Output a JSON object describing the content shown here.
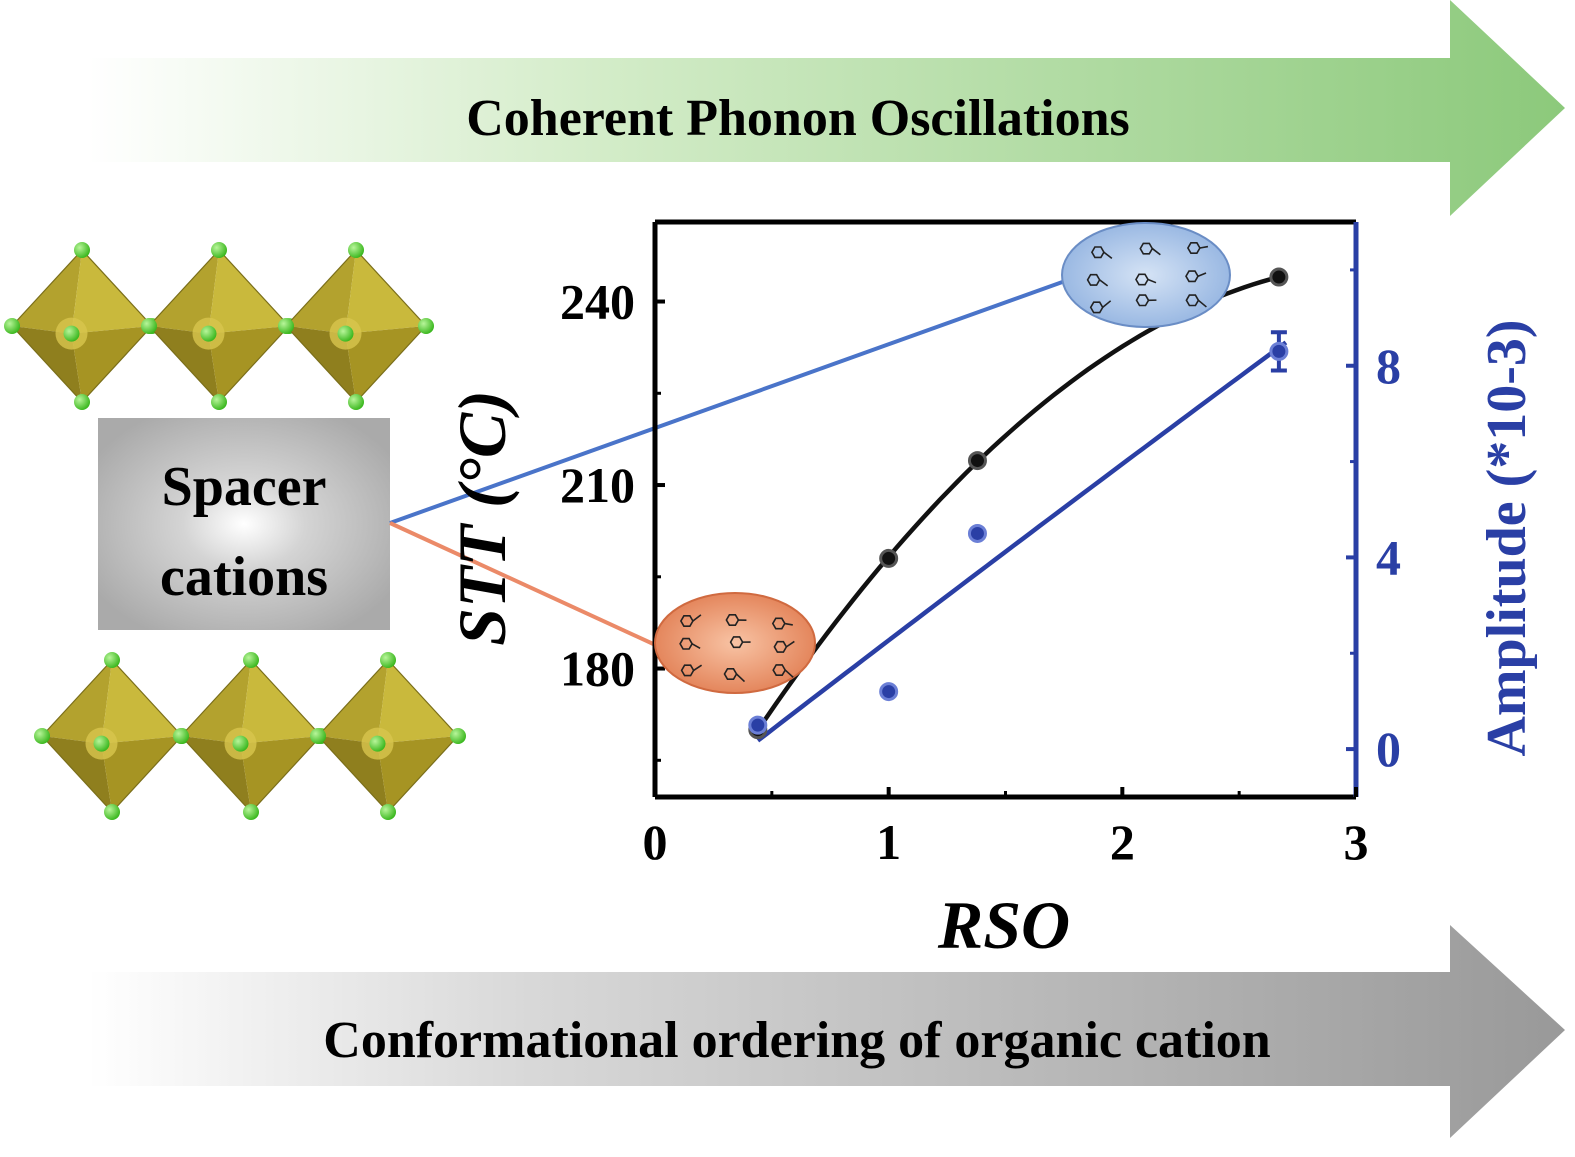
{
  "top_banner": {
    "text": "Coherent Phonon Oscillations",
    "color": "#8cc97b"
  },
  "bottom_banner": {
    "text": "Conformational ordering of organic cation",
    "color": "#9a9a9a"
  },
  "spacer_box": {
    "line1": "Spacer",
    "line2": "cations"
  },
  "chart_data": {
    "type": "scatter",
    "xlabel": "RSO",
    "ylabel_left": "STT (°C)",
    "ylabel_right": "Amplitude (*10-3)",
    "xlim": [
      0,
      3
    ],
    "ylim_left": [
      159,
      253
    ],
    "ylim_right": [
      -1,
      11
    ],
    "x_ticks": [
      "0",
      "1",
      "2",
      "3"
    ],
    "left_ticks": [
      "180",
      "210",
      "240"
    ],
    "right_ticks": [
      "0",
      "4",
      "8"
    ],
    "series": [
      {
        "axis": "left",
        "color": "#111111",
        "x": [
          0.44,
          1.0,
          1.38,
          2.67
        ],
        "y": [
          170,
          198,
          214,
          244
        ],
        "fit": "curve"
      },
      {
        "axis": "right",
        "color": "#2a3fa5",
        "x": [
          0.44,
          1.0,
          1.38,
          2.67
        ],
        "y": [
          0.5,
          1.2,
          4.5,
          8.3
        ],
        "yerr": [
          0,
          0,
          0,
          0.4
        ],
        "fit": "curve"
      }
    ]
  }
}
